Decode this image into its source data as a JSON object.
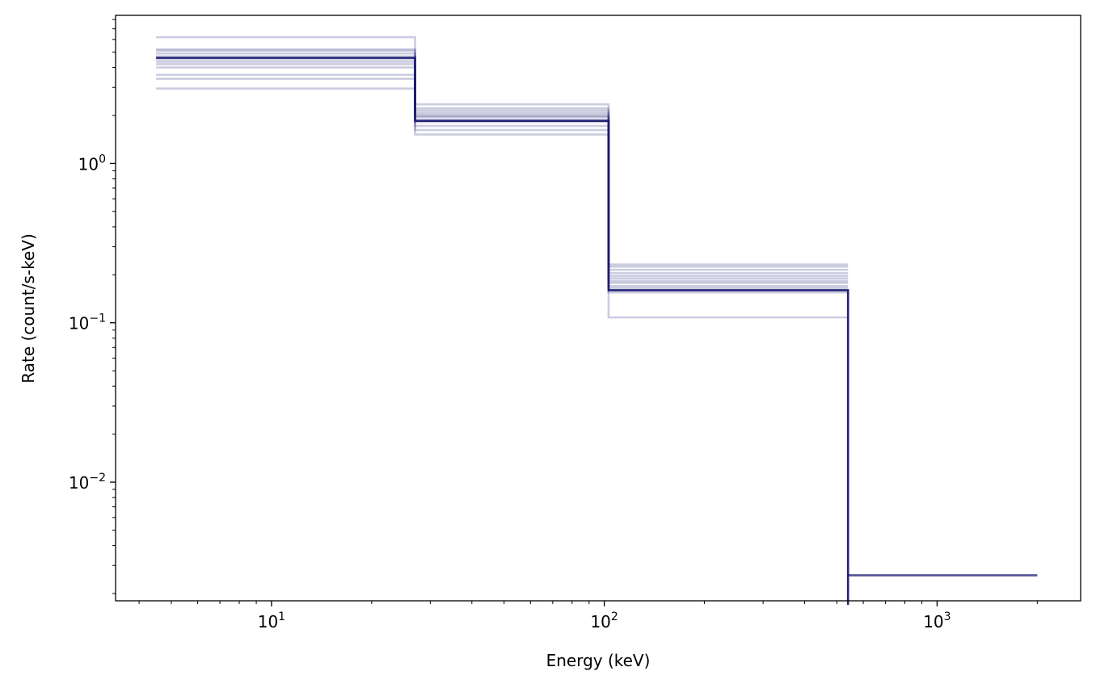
{
  "chart_data": {
    "type": "line",
    "xlabel": "Energy (keV)",
    "ylabel": "Rate (count/s-keV)",
    "xscale": "log",
    "yscale": "log",
    "xlim": [
      3.4,
      2700
    ],
    "ylim": [
      0.0018,
      8.5
    ],
    "grid": false,
    "x_ticks": [
      {
        "base": "10",
        "exp": "1",
        "value": 10
      },
      {
        "base": "10",
        "exp": "2",
        "value": 100
      },
      {
        "base": "10",
        "exp": "3",
        "value": 1000
      }
    ],
    "y_ticks": [
      {
        "base": "10",
        "exp": "0",
        "value": 1
      },
      {
        "base": "10",
        "exp": "−1",
        "value": 0.1
      },
      {
        "base": "10",
        "exp": "−2",
        "value": 0.01
      }
    ],
    "bin_edges": [
      4.5,
      27,
      103,
      540,
      2000
    ],
    "line_color": "#191970",
    "sample_steps": [
      [
        6.2,
        2.35,
        0.108
      ],
      [
        2.95,
        1.52,
        0.155
      ],
      [
        3.4,
        1.62,
        0.165
      ],
      [
        3.6,
        1.72,
        0.17
      ],
      [
        4.0,
        1.82,
        0.178
      ],
      [
        4.2,
        1.88,
        0.183
      ],
      [
        4.5,
        1.95,
        0.19
      ],
      [
        4.7,
        2.02,
        0.197
      ],
      [
        4.9,
        2.08,
        0.205
      ],
      [
        5.1,
        2.15,
        0.215
      ],
      [
        5.2,
        2.22,
        0.225
      ],
      [
        4.35,
        1.98,
        0.232
      ]
    ],
    "final_step": [
      4.6,
      1.85,
      0.16,
      0.0026
    ]
  }
}
